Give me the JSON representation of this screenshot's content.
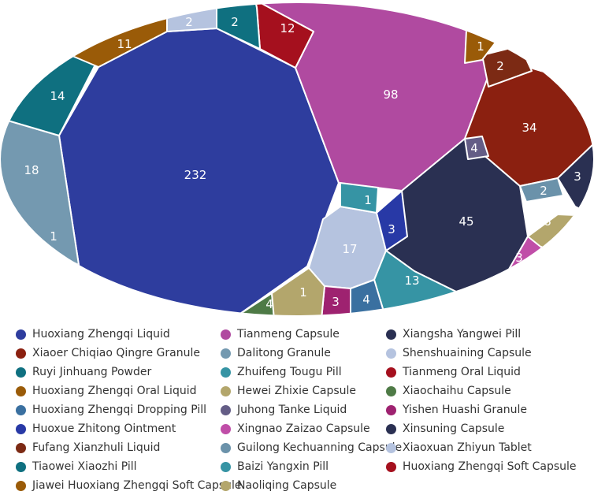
{
  "chart_data": {
    "type": "voronoi-treemap",
    "title": "",
    "series": [
      {
        "name": "Huoxiang Zhengqi Liquid",
        "color": "#2e3d9e",
        "cells": [
          232
        ]
      },
      {
        "name": "Tianmeng Capsule",
        "color": "#b04aa0",
        "cells": [
          98
        ]
      },
      {
        "name": "Xiangsha Yangwei Pill",
        "color": "#2a3052",
        "cells": [
          45,
          3
        ]
      },
      {
        "name": "Xiaoer Chiqiao Qingre Granule",
        "color": "#8b2010",
        "cells": [
          34,
          2
        ]
      },
      {
        "name": "Dalitong Granule",
        "color": "#7499b0",
        "cells": [
          18,
          2
        ]
      },
      {
        "name": "Shenshuaining Capsule",
        "color": "#b5c3df",
        "cells": [
          17,
          2
        ]
      },
      {
        "name": "Ruyi Jinhuang Powder",
        "color": "#0f7080",
        "cells": [
          14
        ]
      },
      {
        "name": "Zhuifeng Tougu Pill",
        "color": "#3694a4",
        "cells": [
          13,
          1
        ]
      },
      {
        "name": "Tianmeng Oral Liquid",
        "color": "#a5101e",
        "cells": [
          12
        ]
      },
      {
        "name": "Huoxiang Zhengqi Oral Liquid",
        "color": "#9a5b08",
        "cells": [
          11
        ]
      },
      {
        "name": "Hewei Zhixie Capsule",
        "color": "#b3a66c",
        "cells": [
          8
        ]
      },
      {
        "name": "Xiaochaihu Capsule",
        "color": "#4e7a46",
        "cells": [
          4
        ]
      },
      {
        "name": "Huoxiang Zhengqi Dropping Pill",
        "color": "#3a70a0",
        "cells": [
          4
        ]
      },
      {
        "name": "Juhong Tanke Liquid",
        "color": "#645d86",
        "cells": [
          4
        ]
      },
      {
        "name": "Yishen Huashi Granule",
        "color": "#9e2270",
        "cells": [
          3
        ]
      },
      {
        "name": "Huoxue Zhitong Ointment",
        "color": "#2839a6",
        "cells": [
          3
        ]
      },
      {
        "name": "Xingnao Zaizao Capsule",
        "color": "#c04ea8",
        "cells": [
          3
        ]
      },
      {
        "name": "Xinsuning Capsule",
        "color": "#2a3052",
        "cells": [
          3
        ]
      },
      {
        "name": "Fufang Xianzhuli Liquid",
        "color": "#7c2a14",
        "cells": [
          2
        ]
      },
      {
        "name": "Guilong Kechuanning Capsule",
        "color": "#6b92aa",
        "cells": [
          2
        ]
      },
      {
        "name": "Xiaoxuan Zhiyun Tablet",
        "color": "#b5c3df",
        "cells": [
          2
        ]
      },
      {
        "name": "Tiaowei Xiaozhi Pill",
        "color": "#0f7080",
        "cells": [
          2
        ]
      },
      {
        "name": "Baizi Yangxin Pill",
        "color": "#3694a4",
        "cells": [
          1
        ]
      },
      {
        "name": "Huoxiang Zhengqi Soft Capsule",
        "color": "#a5101e",
        "cells": [
          1
        ]
      },
      {
        "name": "Jiawei Huoxiang Zhengqi Soft Capsule",
        "color": "#9a5b08",
        "cells": [
          1
        ]
      },
      {
        "name": "Naoliqing Capsule",
        "color": "#b3a66c",
        "cells": [
          1
        ]
      }
    ],
    "cells": [
      {
        "value": 232,
        "color": "#2e3d9e"
      },
      {
        "value": 98,
        "color": "#b04aa0"
      },
      {
        "value": 45,
        "color": "#2a3052"
      },
      {
        "value": 34,
        "color": "#8b2010"
      },
      {
        "value": 18,
        "color": "#7499b0"
      },
      {
        "value": 17,
        "color": "#b5c3df"
      },
      {
        "value": 14,
        "color": "#0f7080"
      },
      {
        "value": 13,
        "color": "#3694a4"
      },
      {
        "value": 12,
        "color": "#a5101e"
      },
      {
        "value": 11,
        "color": "#9a5b08"
      },
      {
        "value": 8,
        "color": "#b3a66c"
      },
      {
        "value": 4,
        "color": "#645d86"
      },
      {
        "value": 4,
        "color": "#4e7a46"
      },
      {
        "value": 4,
        "color": "#3a70a0"
      },
      {
        "value": 3,
        "color": "#2a3052"
      },
      {
        "value": 3,
        "color": "#2839a6"
      },
      {
        "value": 3,
        "color": "#9e2270"
      },
      {
        "value": 3,
        "color": "#c04ea8"
      },
      {
        "value": 2,
        "color": "#b5c3df"
      },
      {
        "value": 2,
        "color": "#0f7080"
      },
      {
        "value": 2,
        "color": "#7c2a14"
      },
      {
        "value": 2,
        "color": "#6b92aa"
      },
      {
        "value": 1,
        "color": "#a5101e"
      },
      {
        "value": 1,
        "color": "#9a5b08"
      },
      {
        "value": 1,
        "color": "#3694a4"
      },
      {
        "value": 1,
        "color": "#b3a66c"
      }
    ],
    "legend_position": "bottom",
    "legend_columns": 3
  },
  "legend": [
    [
      {
        "label": "Huoxiang Zhengqi Liquid",
        "color": "#2e3d9e"
      },
      {
        "label": "Tianmeng Capsule",
        "color": "#b04aa0"
      },
      {
        "label": "Xiangsha Yangwei Pill",
        "color": "#2a3052"
      }
    ],
    [
      {
        "label": "Xiaoer Chiqiao Qingre Granule",
        "color": "#8b2010"
      },
      {
        "label": "Dalitong Granule",
        "color": "#7499b0"
      },
      {
        "label": "Shenshuaining Capsule",
        "color": "#b5c3df"
      }
    ],
    [
      {
        "label": "Ruyi Jinhuang Powder",
        "color": "#0f7080"
      },
      {
        "label": "Zhuifeng Tougu Pill",
        "color": "#3694a4"
      },
      {
        "label": "Tianmeng Oral Liquid",
        "color": "#a5101e"
      }
    ],
    [
      {
        "label": "Huoxiang Zhengqi Oral Liquid",
        "color": "#9a5b08"
      },
      {
        "label": "Hewei Zhixie Capsule",
        "color": "#b3a66c"
      },
      {
        "label": "Xiaochaihu Capsule",
        "color": "#4e7a46"
      }
    ],
    [
      {
        "label": "Huoxiang Zhengqi Dropping Pill",
        "color": "#3a70a0"
      },
      {
        "label": "Juhong Tanke Liquid",
        "color": "#645d86"
      },
      {
        "label": "Yishen Huashi Granule",
        "color": "#9e2270"
      }
    ],
    [
      {
        "label": "Huoxue Zhitong Ointment",
        "color": "#2839a6"
      },
      {
        "label": "Xingnao Zaizao Capsule",
        "color": "#c04ea8"
      },
      {
        "label": "Xinsuning Capsule",
        "color": "#2a3052"
      }
    ],
    [
      {
        "label": "Fufang Xianzhuli Liquid",
        "color": "#7c2a14"
      },
      {
        "label": "Guilong Kechuanning Capsule",
        "color": "#6b92aa"
      },
      {
        "label": "Xiaoxuan Zhiyun Tablet",
        "color": "#b5c3df"
      }
    ],
    [
      {
        "label": "Tiaowei Xiaozhi Pill",
        "color": "#0f7080"
      },
      {
        "label": "Baizi Yangxin Pill",
        "color": "#3694a4"
      },
      {
        "label": "Huoxiang Zhengqi Soft Capsule",
        "color": "#a5101e"
      }
    ],
    [
      {
        "label": "Jiawei Huoxiang Zhengqi Soft Capsule",
        "color": "#9a5b08"
      },
      {
        "label": "Naoliqing Capsule",
        "color": "#b3a66c"
      }
    ]
  ]
}
